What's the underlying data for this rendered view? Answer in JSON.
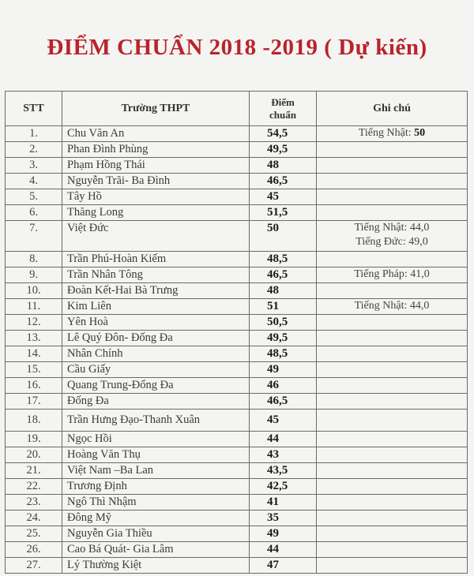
{
  "title": "ĐIỂM CHUẨN 2018 -2019 ( Dự kiến)",
  "headers": {
    "stt": "STT",
    "school": "Trường THPT",
    "score_line1": "Điểm",
    "score_line2": "chuẩn",
    "note": "Ghi chú"
  },
  "rows": [
    {
      "stt": "1.",
      "school": "Chu Văn An",
      "score": "54,5",
      "notes": [
        {
          "label": "Tiếng Nhật:",
          "value": "50",
          "bold": true
        }
      ]
    },
    {
      "stt": "2.",
      "school": "Phan Đình Phùng",
      "score": "49,5",
      "notes": []
    },
    {
      "stt": "3.",
      "school": "Phạm Hồng Thái",
      "score": "48",
      "notes": []
    },
    {
      "stt": "4.",
      "school": "Nguyễn Trãi- Ba Đình",
      "score": "46,5",
      "notes": []
    },
    {
      "stt": "5.",
      "school": "Tây Hồ",
      "score": "45",
      "notes": []
    },
    {
      "stt": "6.",
      "school": "Thăng Long",
      "score": "51,5",
      "notes": []
    },
    {
      "stt": "7.",
      "school": "Việt Đức",
      "score": "50",
      "notes": [
        {
          "label": "Tiếng Nhật:",
          "value": "44,0"
        },
        {
          "label": "Tiếng Đức:",
          "value": "49,0"
        }
      ]
    },
    {
      "stt": "8.",
      "school": "Trần Phú-Hoàn Kiếm",
      "score": "48,5",
      "notes": []
    },
    {
      "stt": "9.",
      "school": "Trần Nhân Tông",
      "score": "46,5",
      "notes": [
        {
          "label": "Tiếng Pháp:",
          "value": "41,0"
        }
      ]
    },
    {
      "stt": "10.",
      "school": "Đoàn Kết-Hai Bà Trưng",
      "score": "48",
      "notes": []
    },
    {
      "stt": "11.",
      "school": "Kim Liên",
      "score": "51",
      "notes": [
        {
          "label": "Tiếng Nhật:",
          "value": "44,0"
        }
      ]
    },
    {
      "stt": "12.",
      "school": "Yên Hoà",
      "score": "50,5",
      "notes": []
    },
    {
      "stt": "13.",
      "school": "Lê Quý Đôn- Đống Đa",
      "score": "49,5",
      "notes": []
    },
    {
      "stt": "14.",
      "school": "Nhân Chính",
      "score": "48,5",
      "notes": []
    },
    {
      "stt": "15.",
      "school": "Cầu Giấy",
      "score": "49",
      "notes": []
    },
    {
      "stt": "16.",
      "school": "Quang Trung-Đống Đa",
      "score": "46",
      "notes": []
    },
    {
      "stt": "17.",
      "school": "Đống Đa",
      "score": "46,5",
      "notes": []
    },
    {
      "stt": "18.",
      "school": "Trần Hưng Đạo-Thanh Xuân",
      "score": "45",
      "notes": []
    },
    {
      "stt": "19.",
      "school": "Ngọc Hồi",
      "score": "44",
      "notes": []
    },
    {
      "stt": "20.",
      "school": "Hoàng Văn Thụ",
      "score": "43",
      "notes": []
    },
    {
      "stt": "21.",
      "school": "Việt Nam –Ba Lan",
      "score": "43,5",
      "notes": []
    },
    {
      "stt": "22.",
      "school": "Trương Định",
      "score": "42,5",
      "notes": []
    },
    {
      "stt": "23.",
      "school": "Ngô Thì Nhậm",
      "score": "41",
      "notes": []
    },
    {
      "stt": "24.",
      "school": "Đông Mỹ",
      "score": "35",
      "notes": []
    },
    {
      "stt": "25.",
      "school": "Nguyễn Gia Thiều",
      "score": "49",
      "notes": []
    },
    {
      "stt": "26.",
      "school": "Cao Bá Quát- Gia Lâm",
      "score": "44",
      "notes": []
    },
    {
      "stt": "27.",
      "school": "Lý Thường Kiệt",
      "score": "47",
      "notes": []
    }
  ]
}
